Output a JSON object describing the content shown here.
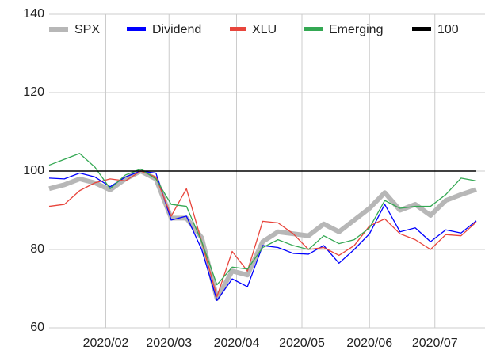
{
  "chart_data": {
    "type": "line",
    "x": [
      5,
      12,
      19,
      26,
      33,
      40,
      47,
      54,
      61,
      68,
      75,
      82,
      89,
      96,
      103,
      110,
      117,
      124,
      131,
      138,
      145,
      152,
      159,
      166,
      173,
      180,
      187,
      194,
      201
    ],
    "xlim": [
      5,
      205
    ],
    "xticks": [
      {
        "value": 31,
        "label": "2020/02"
      },
      {
        "value": 60,
        "label": "2020/03"
      },
      {
        "value": 91,
        "label": "2020/04"
      },
      {
        "value": 121,
        "label": "2020/05"
      },
      {
        "value": 152,
        "label": "2020/06"
      },
      {
        "value": 182,
        "label": "2020/07"
      }
    ],
    "ylim": [
      60,
      140
    ],
    "yticks": [
      60,
      80,
      100,
      120,
      140
    ],
    "grid": true,
    "legend": "top",
    "series": [
      {
        "name": "SPX",
        "color": "#b7b7b7",
        "values": [
          95.5,
          96.5,
          98,
          97,
          95.2,
          98,
          100,
          98,
          88,
          88,
          83,
          67.5,
          74.5,
          73.5,
          82,
          84.5,
          84,
          83.5,
          86.5,
          84.5,
          87.5,
          90.5,
          94.5,
          90,
          91.5,
          88.7,
          92.5,
          94,
          95.3
        ]
      },
      {
        "name": "Dividend",
        "color": "#0000ff",
        "values": [
          98.2,
          98,
          99.5,
          98.5,
          96,
          98.5,
          100,
          99.5,
          87.5,
          88.5,
          80,
          67,
          72.5,
          70.5,
          81,
          80.5,
          79,
          78.8,
          81,
          76.5,
          80,
          84,
          91.5,
          84.5,
          85.5,
          82,
          85,
          84.2,
          87.3
        ]
      },
      {
        "name": "XLU",
        "color": "#e8453c",
        "values": [
          91,
          91.5,
          95,
          97,
          98,
          97.5,
          100,
          98.5,
          88.5,
          95.5,
          82,
          68,
          79.5,
          74.5,
          87.2,
          86.8,
          84,
          80,
          80.5,
          78.5,
          81,
          86,
          87.8,
          84,
          82.5,
          80,
          83.8,
          83.5,
          87
        ]
      },
      {
        "name": "Emerging",
        "color": "#34a853",
        "values": [
          101.5,
          103,
          104.5,
          101,
          95.5,
          99,
          100.5,
          98,
          91.5,
          91,
          82,
          71,
          75.5,
          75,
          80.5,
          82.5,
          81,
          80,
          83.5,
          81.5,
          82.5,
          85.5,
          92.5,
          90.5,
          91,
          91,
          94,
          98.2,
          97.5
        ]
      },
      {
        "name": "100",
        "color": "#000000",
        "values": [
          100,
          100,
          100,
          100,
          100,
          100,
          100,
          100,
          100,
          100,
          100,
          100,
          100,
          100,
          100,
          100,
          100,
          100,
          100,
          100,
          100,
          100,
          100,
          100,
          100,
          100,
          100,
          100,
          100
        ]
      }
    ]
  }
}
